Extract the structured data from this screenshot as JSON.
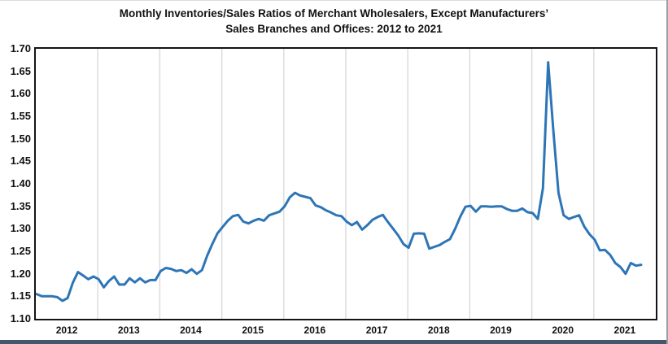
{
  "page": {
    "title_line1": "Monthly Inventories/Sales Ratios of Merchant Wholesalers, Except Manufacturers’",
    "title_line2": "Sales Branches and Offices: 2012 to 2021"
  },
  "colors": {
    "line": "#2E75B6",
    "gridline": "#DCDCDC",
    "frame": "#141414",
    "footer_bar": "#46566C",
    "text": "#111111"
  },
  "chart_data": {
    "type": "line",
    "title": "Monthly Inventories/Sales Ratios of Merchant Wholesalers, Except Manufacturers’ Sales Branches and Offices: 2012 to 2021",
    "xlabel": "",
    "ylabel": "",
    "x_unit": "month",
    "start_month": "2012-01",
    "end_month": "2021-10",
    "years": [
      "2012",
      "2013",
      "2014",
      "2015",
      "2016",
      "2017",
      "2018",
      "2019",
      "2020",
      "2021"
    ],
    "y_ticks": [
      "1.70",
      "1.65",
      "1.60",
      "1.55",
      "1.50",
      "1.45",
      "1.40",
      "1.35",
      "1.30",
      "1.25",
      "1.20",
      "1.15",
      "1.10"
    ],
    "ylim": [
      1.1,
      1.7
    ],
    "grid": "vertical-only",
    "legend": "none",
    "series": [
      {
        "name": "Inventories/Sales ratio",
        "values": [
          1.155,
          1.15,
          1.15,
          1.15,
          1.148,
          1.14,
          1.146,
          1.18,
          1.204,
          1.196,
          1.188,
          1.194,
          1.188,
          1.17,
          1.184,
          1.194,
          1.176,
          1.176,
          1.19,
          1.181,
          1.19,
          1.181,
          1.186,
          1.186,
          1.206,
          1.213,
          1.211,
          1.206,
          1.208,
          1.202,
          1.21,
          1.2,
          1.208,
          1.24,
          1.266,
          1.29,
          1.304,
          1.318,
          1.328,
          1.331,
          1.316,
          1.312,
          1.318,
          1.322,
          1.318,
          1.33,
          1.334,
          1.338,
          1.35,
          1.37,
          1.38,
          1.374,
          1.371,
          1.368,
          1.352,
          1.348,
          1.341,
          1.336,
          1.33,
          1.328,
          1.316,
          1.308,
          1.315,
          1.298,
          1.308,
          1.32,
          1.326,
          1.331,
          1.315,
          1.3,
          1.285,
          1.266,
          1.258,
          1.289,
          1.29,
          1.289,
          1.256,
          1.26,
          1.264,
          1.271,
          1.277,
          1.3,
          1.327,
          1.349,
          1.351,
          1.338,
          1.35,
          1.35,
          1.349,
          1.35,
          1.35,
          1.344,
          1.34,
          1.34,
          1.345,
          1.337,
          1.335,
          1.322,
          1.39,
          1.67,
          1.52,
          1.38,
          1.33,
          1.322,
          1.326,
          1.33,
          1.305,
          1.288,
          1.276,
          1.252,
          1.253,
          1.242,
          1.224,
          1.215,
          1.2,
          1.224,
          1.218,
          1.22
        ]
      }
    ]
  }
}
